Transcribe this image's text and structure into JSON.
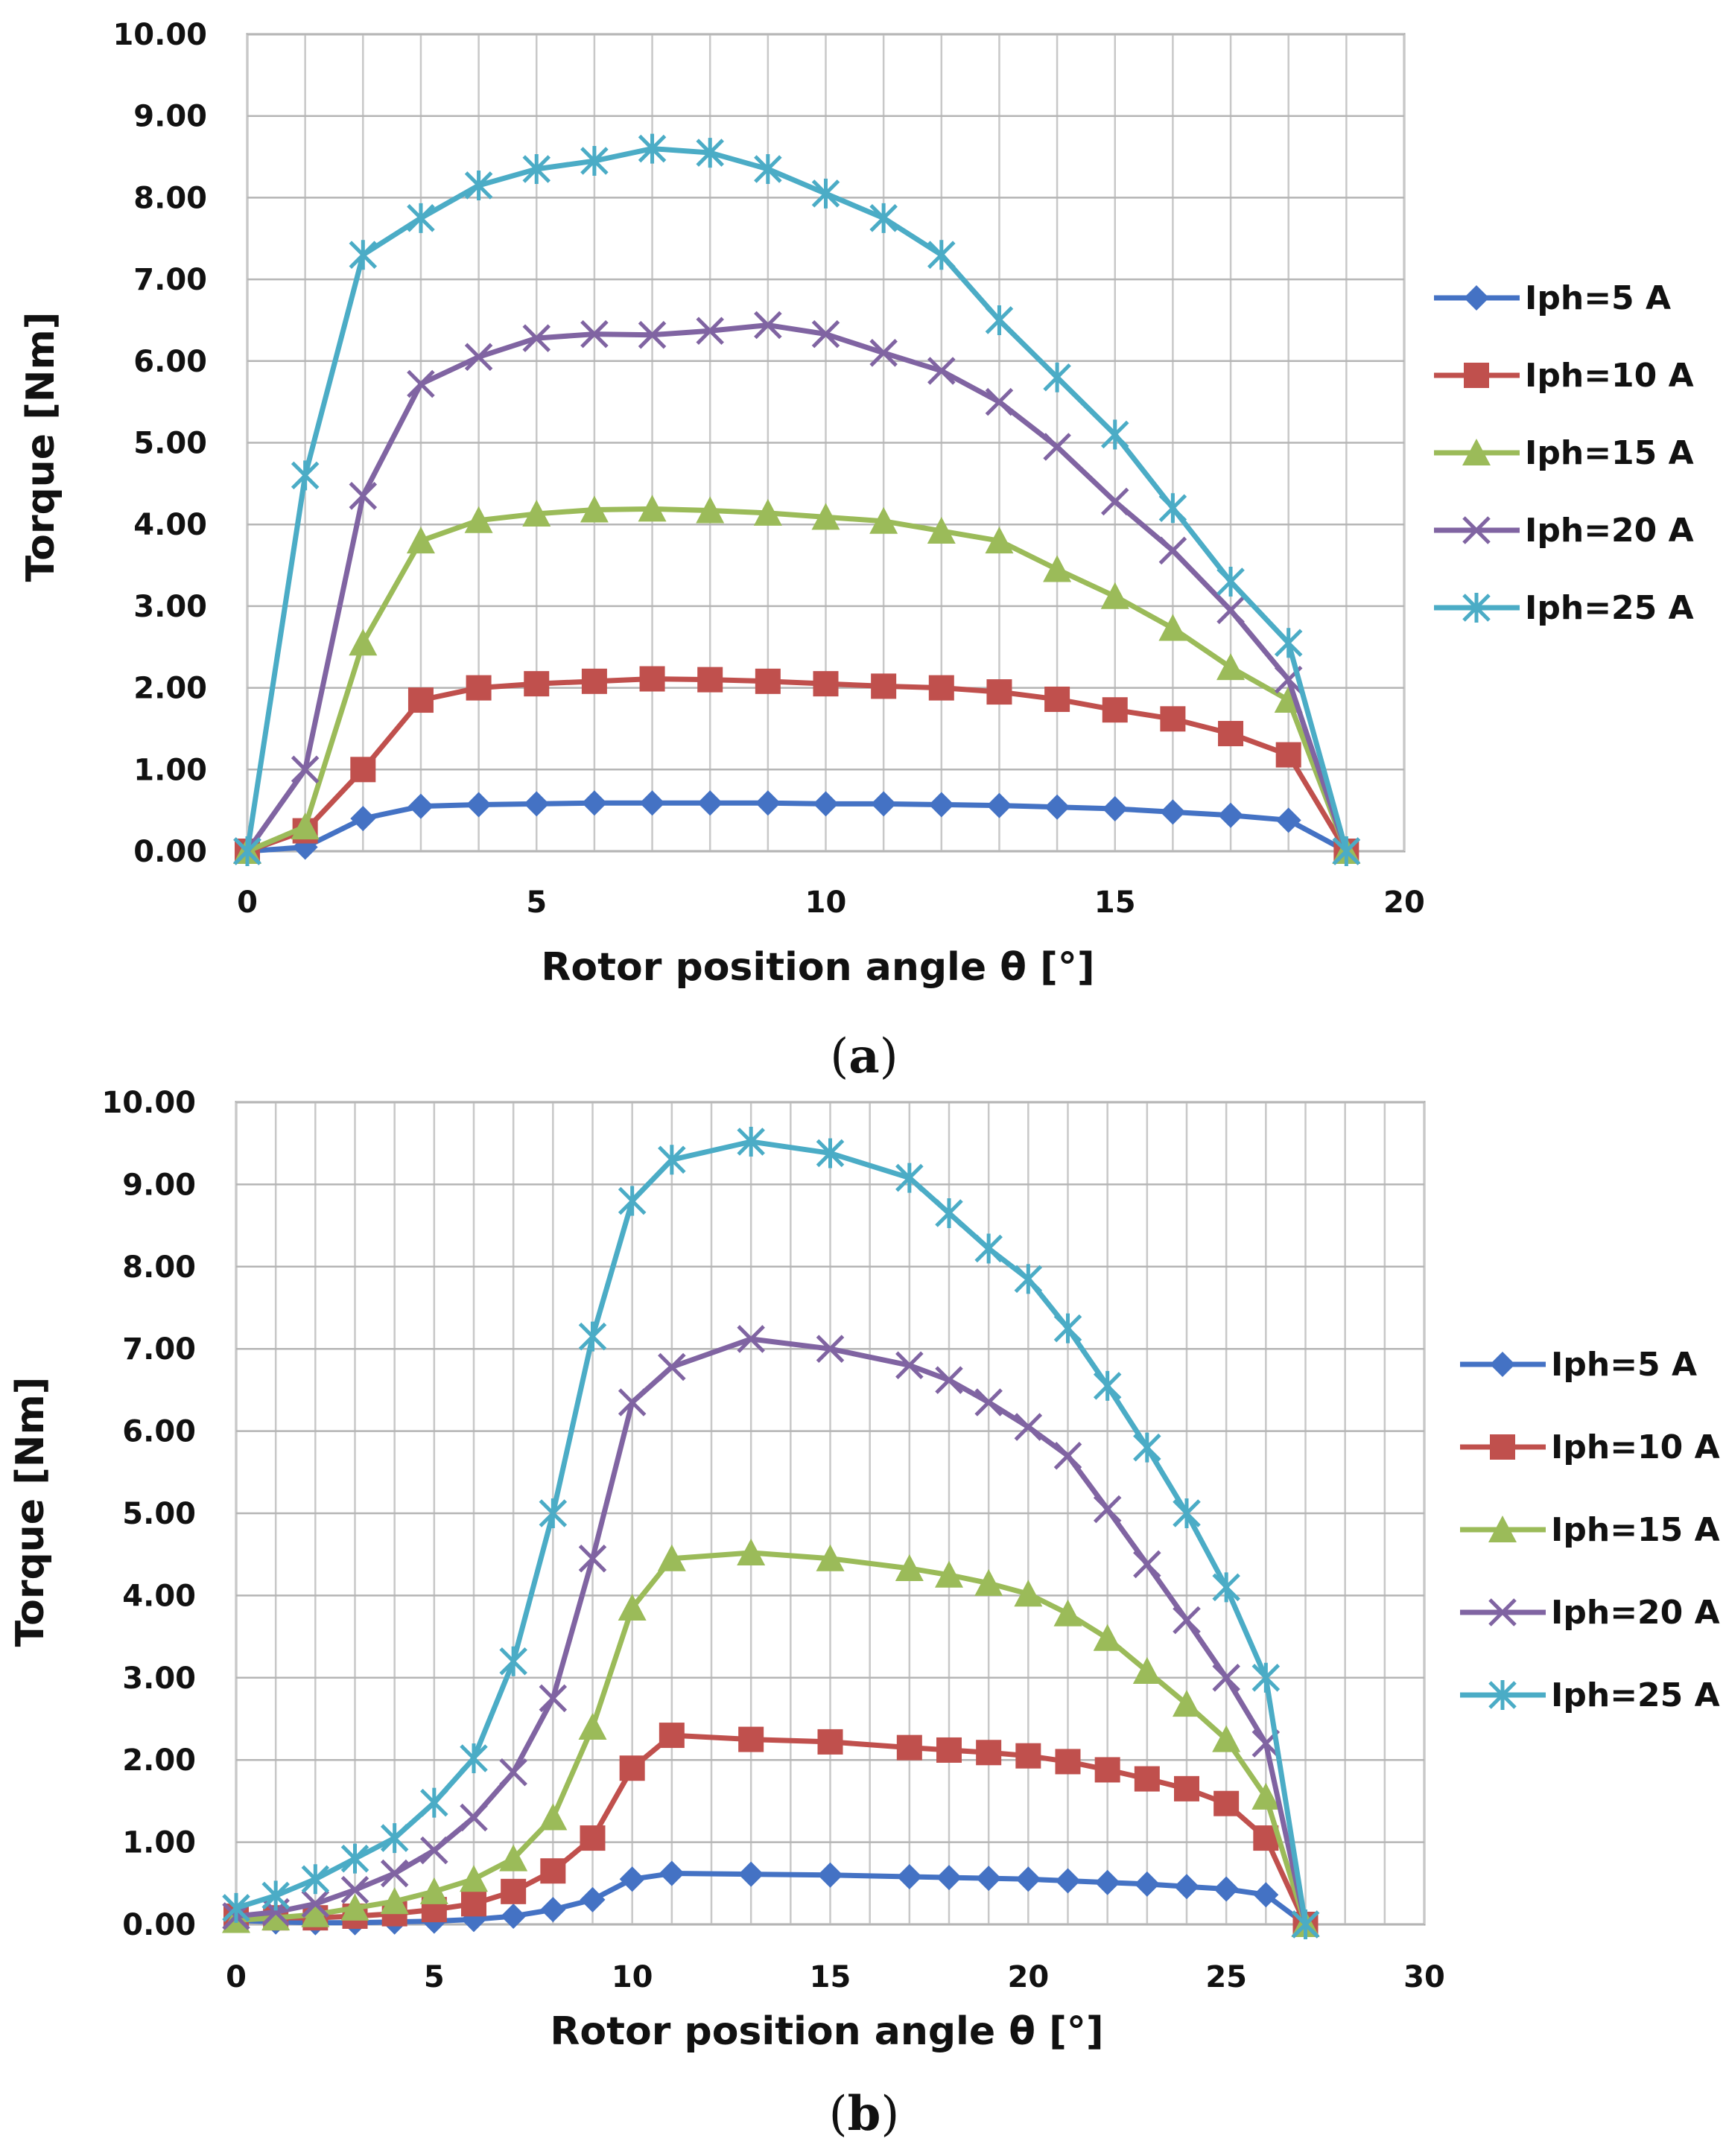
{
  "captions": {
    "a_open": "(",
    "a_letter": "a",
    "a_close": ")",
    "b_open": "(",
    "b_letter": "b",
    "b_close": ")"
  },
  "chart_data": [
    {
      "type": "line",
      "panel": "a",
      "title": "",
      "xlabel": "Rotor position angle  θ [°]",
      "ylabel": "Torque [Nm]",
      "xlim": [
        0,
        20
      ],
      "ylim": [
        0,
        10
      ],
      "xticks": [
        0,
        5,
        10,
        15,
        20
      ],
      "xtick_labels": [
        "0",
        "5",
        "10",
        "15",
        "20"
      ],
      "yticks": [
        0,
        1,
        2,
        3,
        4,
        5,
        6,
        7,
        8,
        9,
        10
      ],
      "ytick_labels": [
        "0.00",
        "1.00",
        "2.00",
        "3.00",
        "4.00",
        "5.00",
        "6.00",
        "7.00",
        "8.00",
        "9.00",
        "10.00"
      ],
      "grid": true,
      "legend_position": "right",
      "x": [
        0,
        1,
        2,
        3,
        4,
        5,
        6,
        7,
        8,
        9,
        10,
        11,
        12,
        13,
        14,
        15,
        16,
        17,
        18,
        19
      ],
      "series": [
        {
          "name": "Iph=5 A",
          "color": "#4472C4",
          "marker": "diamond",
          "values": [
            0.0,
            0.05,
            0.4,
            0.55,
            0.57,
            0.58,
            0.59,
            0.59,
            0.59,
            0.59,
            0.58,
            0.58,
            0.57,
            0.56,
            0.54,
            0.52,
            0.48,
            0.44,
            0.38,
            0.0
          ]
        },
        {
          "name": "Iph=10 A",
          "color": "#C0504D",
          "marker": "square",
          "values": [
            0.0,
            0.25,
            1.0,
            1.85,
            2.0,
            2.05,
            2.08,
            2.11,
            2.1,
            2.08,
            2.05,
            2.02,
            2.0,
            1.95,
            1.86,
            1.73,
            1.62,
            1.44,
            1.18,
            0.0
          ]
        },
        {
          "name": "Iph=15 A",
          "color": "#9BBB59",
          "marker": "triangle",
          "values": [
            0.0,
            0.3,
            2.55,
            3.8,
            4.05,
            4.13,
            4.18,
            4.19,
            4.17,
            4.14,
            4.09,
            4.04,
            3.92,
            3.8,
            3.45,
            3.12,
            2.73,
            2.25,
            1.85,
            0.0
          ]
        },
        {
          "name": "Iph=20 A",
          "color": "#8064A2",
          "marker": "x",
          "values": [
            0.0,
            1.0,
            4.35,
            5.72,
            6.05,
            6.28,
            6.33,
            6.32,
            6.37,
            6.44,
            6.33,
            6.1,
            5.88,
            5.5,
            4.95,
            4.28,
            3.68,
            2.95,
            2.1,
            0.0
          ]
        },
        {
          "name": "Iph=25 A",
          "color": "#4BACC6",
          "marker": "star",
          "values": [
            0.0,
            4.6,
            7.3,
            7.75,
            8.15,
            8.35,
            8.45,
            8.6,
            8.55,
            8.35,
            8.05,
            7.75,
            7.3,
            6.5,
            5.8,
            5.1,
            4.2,
            3.3,
            2.55,
            0.0
          ]
        }
      ]
    },
    {
      "type": "line",
      "panel": "b",
      "title": "",
      "xlabel": "Rotor position angle  θ [°]",
      "ylabel": "Torque [Nm]",
      "xlim": [
        0,
        30
      ],
      "ylim": [
        0,
        10
      ],
      "xticks": [
        0,
        5,
        10,
        15,
        20,
        25,
        30
      ],
      "xtick_labels": [
        "0",
        "5",
        "10",
        "15",
        "20",
        "25",
        "30"
      ],
      "yticks": [
        0,
        1,
        2,
        3,
        4,
        5,
        6,
        7,
        8,
        9,
        10
      ],
      "ytick_labels": [
        "0.00",
        "1.00",
        "2.00",
        "3.00",
        "4.00",
        "5.00",
        "6.00",
        "7.00",
        "8.00",
        "9.00",
        "10.00"
      ],
      "grid": true,
      "legend_position": "right",
      "x": [
        0,
        1,
        2,
        3,
        4,
        5,
        6,
        7,
        8,
        9,
        10,
        11,
        13,
        15,
        17,
        18,
        19,
        20,
        21,
        22,
        23,
        24,
        25,
        26,
        27
      ],
      "series": [
        {
          "name": "Iph=5 A",
          "color": "#4472C4",
          "marker": "diamond",
          "values": [
            0.05,
            0.03,
            0.02,
            0.02,
            0.03,
            0.04,
            0.06,
            0.1,
            0.18,
            0.3,
            0.55,
            0.62,
            0.61,
            0.6,
            0.58,
            0.57,
            0.56,
            0.55,
            0.53,
            0.51,
            0.49,
            0.46,
            0.43,
            0.36,
            0.0
          ]
        },
        {
          "name": "Iph=10 A",
          "color": "#C0504D",
          "marker": "square",
          "values": [
            0.1,
            0.08,
            0.08,
            0.1,
            0.13,
            0.18,
            0.25,
            0.4,
            0.65,
            1.05,
            1.9,
            2.3,
            2.25,
            2.22,
            2.15,
            2.12,
            2.09,
            2.05,
            1.98,
            1.88,
            1.77,
            1.65,
            1.47,
            1.05,
            0.0
          ]
        },
        {
          "name": "Iph=15 A",
          "color": "#9BBB59",
          "marker": "triangle",
          "values": [
            0.05,
            0.08,
            0.12,
            0.2,
            0.28,
            0.4,
            0.55,
            0.8,
            1.3,
            2.4,
            3.85,
            4.45,
            4.52,
            4.45,
            4.33,
            4.25,
            4.15,
            4.02,
            3.78,
            3.48,
            3.08,
            2.68,
            2.25,
            1.55,
            0.0
          ]
        },
        {
          "name": "Iph=20 A",
          "color": "#8064A2",
          "marker": "x",
          "values": [
            0.1,
            0.15,
            0.25,
            0.42,
            0.62,
            0.9,
            1.3,
            1.85,
            2.75,
            4.45,
            6.35,
            6.78,
            7.12,
            7.0,
            6.8,
            6.62,
            6.35,
            6.05,
            5.7,
            5.05,
            4.38,
            3.7,
            3.0,
            2.2,
            0.0
          ]
        },
        {
          "name": "Iph=25 A",
          "color": "#4BACC6",
          "marker": "star",
          "values": [
            0.2,
            0.35,
            0.55,
            0.8,
            1.05,
            1.48,
            2.02,
            3.2,
            5.0,
            7.15,
            8.8,
            9.3,
            9.52,
            9.38,
            9.08,
            8.65,
            8.22,
            7.85,
            7.25,
            6.55,
            5.8,
            5.0,
            4.1,
            3.0,
            0.0
          ]
        }
      ]
    }
  ]
}
